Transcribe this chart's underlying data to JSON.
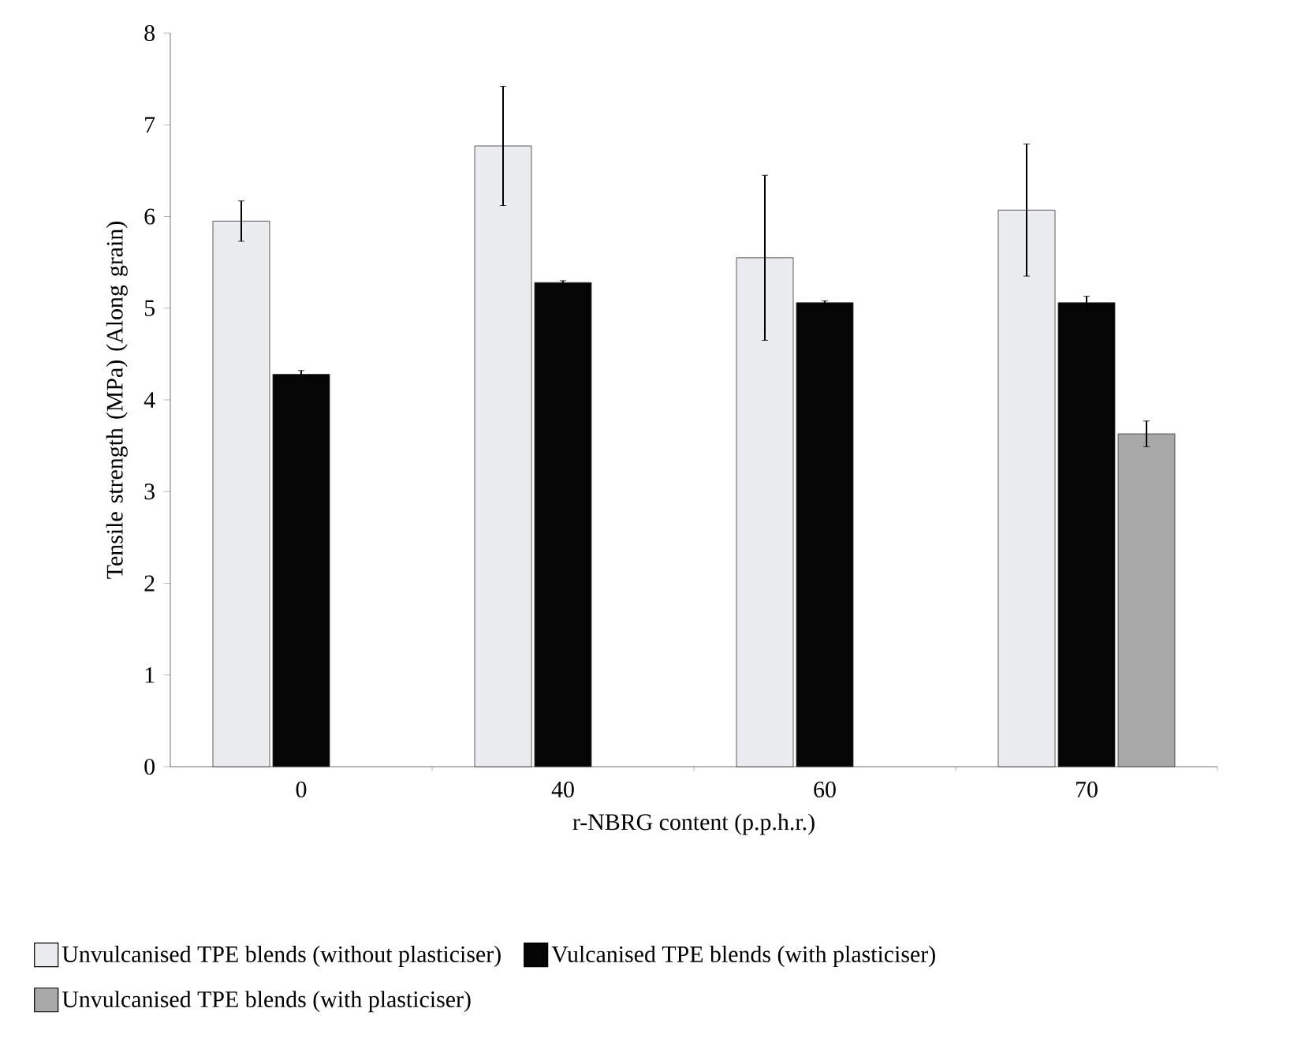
{
  "chart_data": {
    "type": "bar",
    "xlabel": "r-NBRG content (p.p.h.r.)",
    "ylabel": "Tensile strength (MPa) (Along grain)",
    "categories": [
      "0",
      "40",
      "60",
      "70"
    ],
    "series": [
      {
        "name": "Unvulcanised TPE blends (without plasticiser)",
        "color": "#ebecf0",
        "values": [
          5.95,
          6.77,
          5.55,
          6.07
        ],
        "errors": [
          0.22,
          0.65,
          0.9,
          0.72
        ]
      },
      {
        "name": "Vulcanised TPE blends (with plasticiser)",
        "color": "#050505",
        "values": [
          4.28,
          5.28,
          5.06,
          5.06
        ],
        "errors": [
          0.04,
          0.02,
          0.02,
          0.07
        ]
      },
      {
        "name": "Unvulcanised TPE blends (with plasticiser)",
        "color": "#a8a8a8",
        "values": [
          null,
          null,
          null,
          3.63
        ],
        "errors": [
          null,
          null,
          null,
          0.14
        ]
      }
    ],
    "ylim": [
      0,
      8
    ],
    "yticks": [
      0,
      1,
      2,
      3,
      4,
      5,
      6,
      7,
      8
    ],
    "grid": false,
    "legend": "bottom"
  }
}
